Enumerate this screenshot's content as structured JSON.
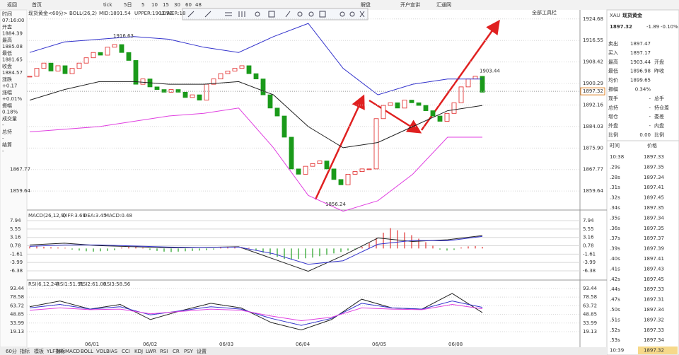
{
  "toolbar": {
    "left": [
      "返回",
      "首页",
      "tick",
      "5日",
      "5",
      "10",
      "15",
      "30",
      "60",
      "48"
    ],
    "right": [
      "解盘",
      "开户宣讲",
      "汇通网"
    ],
    "all_tools": "全部工具栏"
  },
  "quote_panel": [
    {
      "label": "时间",
      "value": "07:16:00"
    },
    {
      "label": "开盘",
      "value": 1884.39
    },
    {
      "label": "最高",
      "value": 1885.08
    },
    {
      "label": "最低",
      "value": 1881.65
    },
    {
      "label": "收盘",
      "value": 1884.57
    },
    {
      "label": "涨跌",
      "value": "+0.17"
    },
    {
      "label": "涨幅",
      "value": "+0.01%"
    },
    {
      "label": "振幅",
      "value": "0.18%"
    },
    {
      "label": "成交量",
      "value": "-"
    },
    {
      "label": "总持",
      "value": "-"
    },
    {
      "label": "结算",
      "value": "-"
    }
  ],
  "main_chart": {
    "legend": {
      "symbol": "现货黄金<60分>",
      "indicator": "BOLL(26,2)",
      "mid": "MID:1891.54",
      "upper": "UPPER:1903.92",
      "lower": "LOWER:18"
    },
    "ylim": [
      1853.0,
      1928.1
    ],
    "yticks": [
      1924.68,
      1916.55,
      1908.42,
      1900.29,
      1892.16,
      1884.03,
      {
        "value": 1875.9,
        "label": "1875.90"
      },
      1867.77,
      1859.64
    ],
    "last_price": 1897.32,
    "annotations": [
      1916.63,
      1856.24,
      1903.44
    ],
    "closes": [
      1903,
      1906,
      1908,
      1905,
      1907,
      1904,
      1906,
      1908,
      1910,
      1912,
      1911,
      1914,
      1915,
      1912,
      1909,
      1900,
      1902,
      1899,
      1898,
      1897,
      1898,
      1897,
      1895,
      1896,
      1894,
      1900,
      1902,
      1904,
      1905,
      1906,
      1907,
      1904,
      1902,
      1896,
      1891,
      1888,
      1880,
      1868,
      1866,
      1869,
      1870,
      1871,
      1868,
      1864,
      1862,
      1866,
      1867,
      1868,
      1868,
      1887,
      1892,
      1893,
      1891,
      1894,
      1893,
      1892,
      1890,
      1888,
      1886,
      1889,
      1893,
      1899,
      1902,
      1903,
      1897
    ],
    "boll_upper": [
      1912,
      1916,
      1917,
      1918,
      1917,
      1914,
      1912,
      1918,
      1923,
      1906,
      1896,
      1900,
      1902,
      1902
    ],
    "boll_mid": [
      1894,
      1898,
      1901,
      1901,
      1900,
      1900,
      1901,
      1896,
      1884,
      1876,
      1878,
      1884,
      1890,
      1892
    ],
    "boll_lower": [
      1882,
      1883,
      1884,
      1886,
      1888,
      1889,
      1891,
      1876,
      1858,
      1852,
      1856,
      1866,
      1880,
      1880
    ]
  },
  "macd": {
    "legend": {
      "name": "MACD(26,12,9)",
      "diff": "DIFF:3.69",
      "dea": "DEA:3.45",
      "macd": "MACD:0.48"
    },
    "ylim": [
      -8.8,
      10.36
    ],
    "yticks": [
      7.94,
      5.55,
      3.16,
      0.78,
      -1.61,
      -3.99,
      -6.38
    ],
    "hist": [
      0.6,
      0.7,
      0.5,
      0.4,
      0.3,
      0.2,
      -0.3,
      -0.6,
      -0.8,
      -0.9,
      -0.8,
      -0.7,
      -0.5,
      0.3,
      0.5,
      0.4,
      0.2,
      -0.4,
      -0.7,
      -0.9,
      -1.0,
      -0.9,
      -0.8,
      -0.7,
      -0.6,
      -0.5,
      -0.3,
      0.3,
      0.5,
      0.6,
      0.4,
      0.2,
      -0.5,
      -1.2,
      -1.8,
      -2.4,
      -3.0,
      -3.2,
      -3.0,
      -2.8,
      -2.6,
      -2.2,
      -1.8,
      -1.4,
      -1.0,
      -0.6,
      -0.3,
      0.5,
      1.5,
      3.0,
      4.5,
      5.8,
      5.2,
      4.6,
      3.8,
      2.8,
      1.8,
      0.8,
      -0.3,
      -0.6,
      -0.4,
      0.3,
      0.6,
      0.7,
      0.48
    ],
    "diff": [
      1.0,
      1.5,
      0.8,
      0.5,
      0.2,
      0.3,
      0.5,
      -3,
      -6.5,
      -2,
      3,
      2,
      2.5,
      3.69
    ],
    "dea": [
      0.6,
      1.0,
      1.0,
      0.7,
      0.4,
      0.3,
      0.4,
      -1.5,
      -4.5,
      -3.5,
      1.2,
      2.3,
      2.2,
      3.45
    ]
  },
  "rsi": {
    "legend": {
      "name": "RSI(6,12,24)",
      "rsi1": "RSI1:51.91",
      "rsi2": "RSI2:61.00",
      "rsi3": "RSI3:58.56"
    },
    "ylim": [
      3.3,
      105.6
    ],
    "yticks": [
      93.44,
      78.58,
      63.72,
      48.85,
      33.99,
      19.13
    ],
    "rsi1": [
      62,
      72,
      58,
      66,
      40,
      55,
      68,
      60,
      35,
      22,
      40,
      75,
      60,
      58,
      85,
      51.91
    ],
    "rsi2": [
      60,
      66,
      58,
      62,
      48,
      55,
      62,
      58,
      42,
      30,
      42,
      68,
      60,
      58,
      72,
      61
    ],
    "rsi3": [
      56,
      60,
      57,
      58,
      50,
      54,
      58,
      56,
      46,
      38,
      44,
      60,
      58,
      57,
      66,
      58.56
    ]
  },
  "dates": [
    "06/01",
    "06/02",
    "06/03",
    "06/04",
    "06/05",
    "06/08"
  ],
  "tabs": [
    "60分",
    "指标",
    "模板",
    "YLF指标",
    "MA",
    "MACD",
    "BOLL",
    "VOL",
    "BIAS",
    "CCI",
    "KDJ",
    "LWR",
    "RSI",
    "CR",
    "PSY",
    "设置"
  ],
  "right_panel": {
    "code": "XAU",
    "name": "现货黄金",
    "price": 1897.32,
    "change": -1.89,
    "pct": "-0.10%",
    "rows": [
      [
        "卖出",
        1897.47
      ],
      [
        "买入",
        1897.17
      ],
      [
        "最高",
        1903.44,
        "开盘"
      ],
      [
        "最低",
        1896.98,
        "昨收"
      ],
      [
        "均价",
        1899.65
      ],
      [
        "振幅",
        "0.34%"
      ],
      [
        "现手",
        "-",
        "总手"
      ],
      [
        "总持",
        "-",
        "持仓差"
      ],
      [
        "增仓",
        "-",
        "委差"
      ],
      [
        "外盘",
        "-",
        "内盘"
      ],
      [
        "比例",
        "0.00",
        "比例"
      ]
    ],
    "tick_header": [
      "时间",
      "价格"
    ],
    "ticks": [
      [
        "10:38",
        1897.33
      ],
      [
        ".29s",
        1897.35
      ],
      [
        ".28s",
        1897.34
      ],
      [
        ".31s",
        1897.41
      ],
      [
        ".32s",
        1897.45
      ],
      [
        ".34s",
        1897.35
      ],
      [
        ".35s",
        1897.34
      ],
      [
        ".36s",
        1897.35
      ],
      [
        ".37s",
        1897.37
      ],
      [
        ".39s",
        1897.39
      ],
      [
        ".40s",
        1897.41
      ],
      [
        ".41s",
        1897.43
      ],
      [
        ".42s",
        1897.45
      ],
      [
        ".44s",
        1897.33
      ],
      [
        ".47s",
        1897.31
      ],
      [
        ".50s",
        1897.34
      ],
      [
        ".51s",
        1897.32
      ],
      [
        ".52s",
        1897.33
      ],
      [
        ".53s",
        1897.34
      ],
      [
        "10:39",
        1897.32
      ]
    ]
  }
}
